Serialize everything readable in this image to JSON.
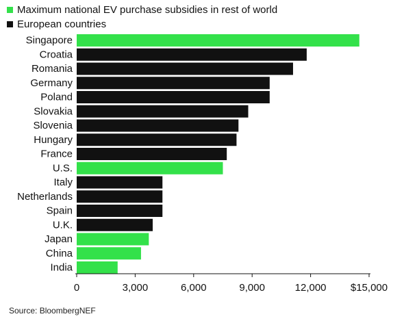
{
  "legend": [
    {
      "label": "Maximum national EV purchase subsidies in rest of world",
      "color": "#33e14a"
    },
    {
      "label": "European countries",
      "color": "#111111"
    }
  ],
  "chart_data": {
    "type": "bar",
    "orientation": "horizontal",
    "title": "",
    "xlabel": "",
    "ylabel": "",
    "xlim": [
      0,
      15000
    ],
    "grid": false,
    "legend_placement": "top-left",
    "x_ticks": [
      0,
      3000,
      6000,
      9000,
      12000,
      15000
    ],
    "x_tick_labels": [
      "0",
      "3,000",
      "6,000",
      "9,000",
      "12,000",
      "$15,000"
    ],
    "categories": [
      "Singapore",
      "Croatia",
      "Romania",
      "Germany",
      "Poland",
      "Slovakia",
      "Slovenia",
      "Hungary",
      "France",
      "U.S.",
      "Italy",
      "Netherlands",
      "Spain",
      "U.K.",
      "Japan",
      "China",
      "India"
    ],
    "values": [
      14500,
      11800,
      11100,
      9900,
      9900,
      8800,
      8300,
      8200,
      7700,
      7500,
      4400,
      4400,
      4400,
      3900,
      3700,
      3300,
      2100
    ],
    "groups": [
      "rest",
      "europe",
      "europe",
      "europe",
      "europe",
      "europe",
      "europe",
      "europe",
      "europe",
      "rest",
      "europe",
      "europe",
      "europe",
      "europe",
      "rest",
      "rest",
      "rest"
    ],
    "group_colors": {
      "rest": "#33e14a",
      "europe": "#111111"
    }
  },
  "source": "Source: BloombergNEF"
}
